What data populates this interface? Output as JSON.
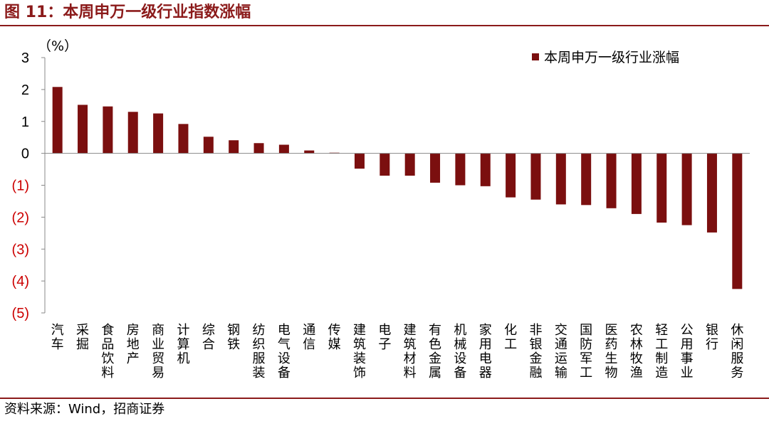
{
  "figure": {
    "title": "图 11：本周申万一级行业指数涨幅",
    "source": "资料来源：Wind，招商证券"
  },
  "colors": {
    "bar": "#7b0f0f",
    "brand": "#8b1a1a",
    "negative_tick": "#cc0000"
  },
  "chart_data": {
    "type": "bar",
    "ylabel": "（%）",
    "ylim": [
      -5,
      3
    ],
    "yticks": [
      {
        "value": 3,
        "label": "3"
      },
      {
        "value": 2,
        "label": "2"
      },
      {
        "value": 1,
        "label": "1"
      },
      {
        "value": 0,
        "label": "0"
      },
      {
        "value": -1,
        "label": "(1)"
      },
      {
        "value": -2,
        "label": "(2)"
      },
      {
        "value": -3,
        "label": "(3)"
      },
      {
        "value": -4,
        "label": "(4)"
      },
      {
        "value": -5,
        "label": "(5)"
      }
    ],
    "grid": false,
    "legend_position": "top-right",
    "categories": [
      "汽车",
      "采掘",
      "食品饮料",
      "房地产",
      "商业贸易",
      "计算机",
      "综合",
      "钢铁",
      "纺织服装",
      "电气设备",
      "通信",
      "传媒",
      "建筑装饰",
      "电子",
      "建筑材料",
      "有色金属",
      "机械设备",
      "家用电器",
      "化工",
      "非银金融",
      "交通运输",
      "国防军工",
      "医药生物",
      "农林牧渔",
      "轻工制造",
      "公用事业",
      "银行",
      "休闲服务"
    ],
    "series": [
      {
        "name": "本周申万一级行业涨幅",
        "values": [
          2.08,
          1.52,
          1.47,
          1.3,
          1.25,
          0.92,
          0.52,
          0.41,
          0.32,
          0.27,
          0.09,
          0.02,
          -0.48,
          -0.7,
          -0.7,
          -0.92,
          -1.0,
          -1.03,
          -1.38,
          -1.45,
          -1.6,
          -1.62,
          -1.72,
          -1.9,
          -2.17,
          -2.25,
          -2.48,
          -4.25
        ]
      }
    ]
  }
}
